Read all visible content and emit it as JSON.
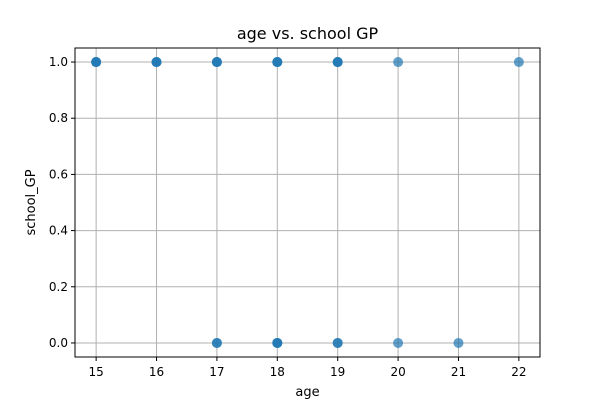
{
  "chart_data": {
    "type": "scatter",
    "title": "age vs. school GP",
    "xlabel": "age",
    "ylabel": "school_GP",
    "xlim": [
      14.65,
      22.35
    ],
    "ylim": [
      -0.05,
      1.05
    ],
    "xticks": [
      15,
      16,
      17,
      18,
      19,
      20,
      21,
      22
    ],
    "yticks": [
      0.0,
      0.2,
      0.4,
      0.6,
      0.8,
      1.0
    ],
    "ytick_labels": [
      "0.0",
      "0.2",
      "0.4",
      "0.6",
      "0.8",
      "1.0"
    ],
    "grid": true,
    "series": [
      {
        "color": "#1f77b4",
        "opacity": 0.7,
        "points": [
          {
            "x": 15,
            "y": 1
          },
          {
            "x": 15,
            "y": 1
          },
          {
            "x": 15,
            "y": 1
          },
          {
            "x": 16,
            "y": 1
          },
          {
            "x": 16,
            "y": 1
          },
          {
            "x": 16,
            "y": 1
          },
          {
            "x": 17,
            "y": 1
          },
          {
            "x": 17,
            "y": 1
          },
          {
            "x": 17,
            "y": 1
          },
          {
            "x": 18,
            "y": 1
          },
          {
            "x": 18,
            "y": 1
          },
          {
            "x": 18,
            "y": 1
          },
          {
            "x": 19,
            "y": 1
          },
          {
            "x": 19,
            "y": 1
          },
          {
            "x": 19,
            "y": 1
          },
          {
            "x": 20,
            "y": 1
          },
          {
            "x": 22,
            "y": 1
          },
          {
            "x": 17,
            "y": 0
          },
          {
            "x": 17,
            "y": 0
          },
          {
            "x": 18,
            "y": 0
          },
          {
            "x": 18,
            "y": 0
          },
          {
            "x": 18,
            "y": 0
          },
          {
            "x": 19,
            "y": 0
          },
          {
            "x": 19,
            "y": 0
          },
          {
            "x": 20,
            "y": 0
          },
          {
            "x": 21,
            "y": 0
          }
        ]
      }
    ]
  }
}
